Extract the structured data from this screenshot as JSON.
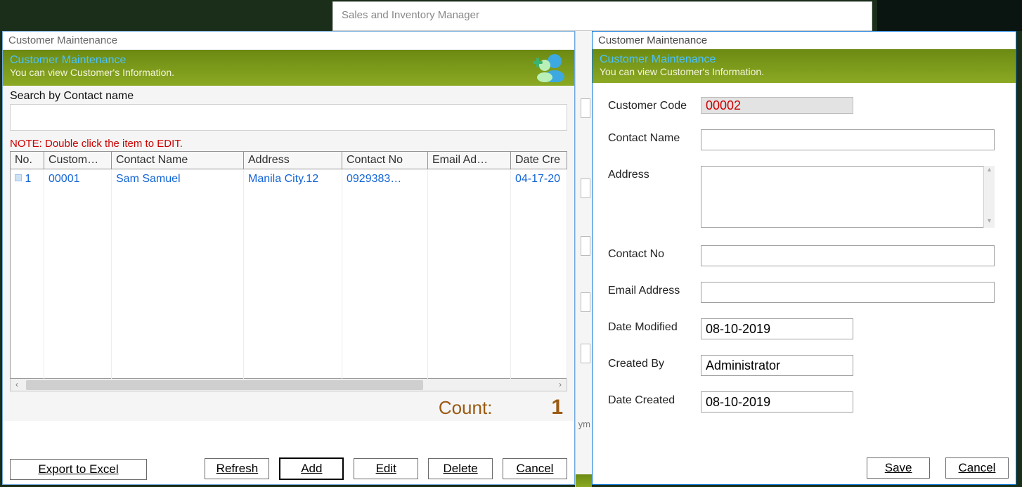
{
  "app": {
    "title": "Sales and Inventory Manager"
  },
  "list_window": {
    "window_title": "Customer Maintenance",
    "banner": {
      "title": "Customer Maintenance",
      "subtitle": "You can view Customer's Information."
    },
    "search_label": "Search by Contact name",
    "search_value": "",
    "note": "NOTE: Double click the item to EDIT.",
    "columns": [
      "No.",
      "Custom…",
      "Contact Name",
      "Address",
      "Contact No",
      "Email Ad…",
      "Date Cre"
    ],
    "rows": [
      {
        "no": "1",
        "code": "00001",
        "name": "Sam Samuel",
        "addr": "Manila City.12",
        "phone": "0929383…",
        "email": "",
        "date": "04-17-20"
      }
    ],
    "empty_rows": 10,
    "count_label": "Count:",
    "count_value": "1",
    "buttons": {
      "export": "Export to Excel",
      "refresh": "Refresh",
      "add": "Add",
      "edit": "Edit",
      "delete": "Delete",
      "cancel": "Cancel"
    }
  },
  "form_window": {
    "window_title": "Customer Maintenance",
    "banner": {
      "title": "Customer Maintenance",
      "subtitle": "You can view Customer's Information."
    },
    "fields": {
      "code": {
        "label": "Customer Code",
        "value": "00002"
      },
      "name": {
        "label": "Contact Name",
        "value": ""
      },
      "addr": {
        "label": "Address",
        "value": ""
      },
      "phone": {
        "label": "Contact No",
        "value": ""
      },
      "email": {
        "label": "Email Address",
        "value": ""
      },
      "mod": {
        "label": "Date Modified",
        "value": "08-10-2019"
      },
      "by": {
        "label": "Created By",
        "value": "Administrator"
      },
      "created": {
        "label": "Date Created",
        "value": "08-10-2019"
      }
    },
    "buttons": {
      "save": "Save",
      "cancel": "Cancel"
    }
  },
  "mid_text": "ym"
}
